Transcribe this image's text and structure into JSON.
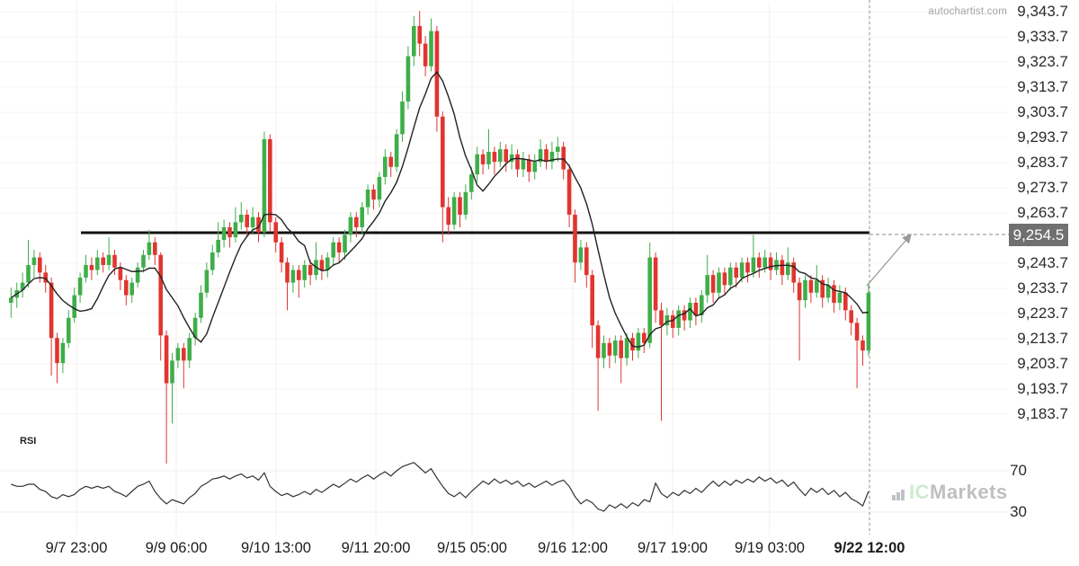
{
  "branding": {
    "watermark_top": "autochartist.com",
    "logo_icon": "bar-chart-icon",
    "logo_ic": "IC",
    "logo_markets": "Markets"
  },
  "price_axis": {
    "labels": [
      "9,343.7",
      "9,333.7",
      "9,323.7",
      "9,313.7",
      "9,303.7",
      "9,293.7",
      "9,283.7",
      "9,273.7",
      "9,263.7",
      "9,243.7",
      "9,233.7",
      "9,223.7",
      "9,213.7",
      "9,203.7",
      "9,193.7",
      "9,183.7"
    ],
    "level_badge": "9,254.5"
  },
  "time_axis": {
    "labels": [
      "9/7 23:00",
      "9/9 06:00",
      "9/10 13:00",
      "9/11 20:00",
      "9/15 05:00",
      "9/16 12:00",
      "9/17 19:00",
      "9/19 03:00",
      "9/22 12:00"
    ]
  },
  "rsi_panel": {
    "title": "RSI",
    "levels": [
      "70",
      "30"
    ]
  },
  "colors": {
    "up": "#3fae4a",
    "down": "#e03530",
    "ma_line": "#222222",
    "level_line": "#111111",
    "annotation": "#999999",
    "grid": "#f4eded",
    "badge_bg": "#707070",
    "badge_text": "#ffffff",
    "rsi_line": "#333333"
  },
  "chart_data": {
    "type": "candlestick",
    "title": "",
    "xlabel": "",
    "ylabel": "",
    "x_tick_labels": [
      "9/7 23:00",
      "9/9 06:00",
      "9/10 13:00",
      "9/11 20:00",
      "9/15 05:00",
      "9/16 12:00",
      "9/17 19:00",
      "9/19 03:00",
      "9/22 12:00"
    ],
    "y_tick_values": [
      9343.7,
      9333.7,
      9323.7,
      9313.7,
      9303.7,
      9293.7,
      9283.7,
      9273.7,
      9263.7,
      9243.7,
      9233.7,
      9223.7,
      9213.7,
      9203.7,
      9193.7,
      9183.7
    ],
    "y_range": [
      9160,
      9350
    ],
    "annotation_level": 9254.5,
    "overlays": [
      {
        "name": "moving-average",
        "derive": "sma",
        "window": 8
      }
    ],
    "candles_ohlc": [
      [
        9228,
        9234,
        9222,
        9230
      ],
      [
        9230,
        9236,
        9226,
        9233
      ],
      [
        9233,
        9240,
        9230,
        9236
      ],
      [
        9236,
        9253,
        9234,
        9243
      ],
      [
        9243,
        9249,
        9238,
        9246
      ],
      [
        9246,
        9248,
        9236,
        9240
      ],
      [
        9240,
        9243,
        9232,
        9236
      ],
      [
        9236,
        9238,
        9199,
        9214
      ],
      [
        9214,
        9216,
        9196,
        9204
      ],
      [
        9204,
        9214,
        9200,
        9212
      ],
      [
        9212,
        9225,
        9210,
        9222
      ],
      [
        9222,
        9234,
        9220,
        9231
      ],
      [
        9231,
        9240,
        9228,
        9238
      ],
      [
        9238,
        9247,
        9236,
        9243
      ],
      [
        9243,
        9246,
        9237,
        9241
      ],
      [
        9241,
        9249,
        9239,
        9246
      ],
      [
        9246,
        9248,
        9240,
        9243
      ],
      [
        9243,
        9254,
        9241,
        9247
      ],
      [
        9247,
        9249,
        9239,
        9242
      ],
      [
        9242,
        9244,
        9233,
        9237
      ],
      [
        9237,
        9239,
        9227,
        9231
      ],
      [
        9231,
        9238,
        9228,
        9236
      ],
      [
        9236,
        9244,
        9234,
        9242
      ],
      [
        9242,
        9249,
        9240,
        9247
      ],
      [
        9247,
        9257,
        9245,
        9252
      ],
      [
        9252,
        9254,
        9243,
        9247
      ],
      [
        9247,
        9248,
        9205,
        9215
      ],
      [
        9215,
        9217,
        9164,
        9196
      ],
      [
        9196,
        9208,
        9180,
        9205
      ],
      [
        9205,
        9212,
        9202,
        9210
      ],
      [
        9210,
        9212,
        9194,
        9205
      ],
      [
        9205,
        9216,
        9202,
        9214
      ],
      [
        9214,
        9224,
        9211,
        9222
      ],
      [
        9222,
        9235,
        9220,
        9232
      ],
      [
        9232,
        9244,
        9230,
        9241
      ],
      [
        9241,
        9251,
        9239,
        9248
      ],
      [
        9248,
        9260,
        9246,
        9253
      ],
      [
        9253,
        9261,
        9250,
        9258
      ],
      [
        9258,
        9260,
        9250,
        9254
      ],
      [
        9254,
        9266,
        9252,
        9260
      ],
      [
        9260,
        9268,
        9257,
        9263
      ],
      [
        9263,
        9265,
        9254,
        9258
      ],
      [
        9258,
        9266,
        9255,
        9262
      ],
      [
        9262,
        9264,
        9252,
        9256
      ],
      [
        9256,
        9296,
        9254,
        9293
      ],
      [
        9293,
        9295,
        9256,
        9260
      ],
      [
        9260,
        9262,
        9248,
        9252
      ],
      [
        9252,
        9254,
        9240,
        9244
      ],
      [
        9244,
        9246,
        9225,
        9236
      ],
      [
        9236,
        9243,
        9232,
        9241
      ],
      [
        9241,
        9243,
        9230,
        9237
      ],
      [
        9237,
        9245,
        9234,
        9243
      ],
      [
        9243,
        9245,
        9235,
        9239
      ],
      [
        9239,
        9252,
        9237,
        9245
      ],
      [
        9245,
        9247,
        9237,
        9241
      ],
      [
        9241,
        9248,
        9238,
        9246
      ],
      [
        9246,
        9254,
        9243,
        9252
      ],
      [
        9252,
        9254,
        9244,
        9248
      ],
      [
        9248,
        9257,
        9245,
        9255
      ],
      [
        9255,
        9264,
        9252,
        9262
      ],
      [
        9262,
        9264,
        9254,
        9258
      ],
      [
        9258,
        9268,
        9255,
        9266
      ],
      [
        9266,
        9275,
        9263,
        9273
      ],
      [
        9273,
        9275,
        9265,
        9269
      ],
      [
        9269,
        9280,
        9266,
        9278
      ],
      [
        9278,
        9289,
        9275,
        9286
      ],
      [
        9286,
        9288,
        9278,
        9282
      ],
      [
        9282,
        9297,
        9280,
        9295
      ],
      [
        9295,
        9312,
        9292,
        9308
      ],
      [
        9308,
        9330,
        9305,
        9326
      ],
      [
        9326,
        9342,
        9322,
        9338
      ],
      [
        9338,
        9344,
        9326,
        9331
      ],
      [
        9331,
        9334,
        9318,
        9322
      ],
      [
        9322,
        9341,
        9320,
        9336
      ],
      [
        9336,
        9338,
        9296,
        9302
      ],
      [
        9302,
        9304,
        9252,
        9266
      ],
      [
        9266,
        9270,
        9255,
        9259
      ],
      [
        9259,
        9272,
        9257,
        9270
      ],
      [
        9270,
        9272,
        9258,
        9263
      ],
      [
        9263,
        9275,
        9261,
        9272
      ],
      [
        9272,
        9282,
        9269,
        9279
      ],
      [
        9279,
        9290,
        9276,
        9287
      ],
      [
        9287,
        9289,
        9279,
        9283
      ],
      [
        9283,
        9297,
        9281,
        9288
      ],
      [
        9288,
        9290,
        9279,
        9284
      ],
      [
        9284,
        9292,
        9282,
        9289
      ],
      [
        9289,
        9291,
        9280,
        9284
      ],
      [
        9284,
        9291,
        9281,
        9287
      ],
      [
        9287,
        9289,
        9278,
        9281
      ],
      [
        9281,
        9288,
        9278,
        9285
      ],
      [
        9285,
        9287,
        9276,
        9280
      ],
      [
        9280,
        9287,
        9277,
        9284
      ],
      [
        9284,
        9293,
        9282,
        9289
      ],
      [
        9289,
        9291,
        9281,
        9284
      ],
      [
        9284,
        9292,
        9281,
        9288
      ],
      [
        9288,
        9294,
        9284,
        9290
      ],
      [
        9290,
        9292,
        9277,
        9281
      ],
      [
        9281,
        9283,
        9258,
        9263
      ],
      [
        9263,
        9265,
        9236,
        9244
      ],
      [
        9244,
        9253,
        9241,
        9250
      ],
      [
        9250,
        9252,
        9234,
        9239
      ],
      [
        9239,
        9241,
        9210,
        9219
      ],
      [
        9219,
        9221,
        9185,
        9206
      ],
      [
        9206,
        9215,
        9202,
        9212
      ],
      [
        9212,
        9214,
        9202,
        9207
      ],
      [
        9207,
        9215,
        9204,
        9213
      ],
      [
        9213,
        9215,
        9196,
        9206
      ],
      [
        9206,
        9216,
        9203,
        9214
      ],
      [
        9214,
        9216,
        9205,
        9209
      ],
      [
        9209,
        9218,
        9206,
        9216
      ],
      [
        9216,
        9218,
        9208,
        9212
      ],
      [
        9212,
        9252,
        9210,
        9246
      ],
      [
        9246,
        9248,
        9220,
        9225
      ],
      [
        9225,
        9228,
        9181,
        9219
      ],
      [
        9219,
        9226,
        9215,
        9223
      ],
      [
        9223,
        9225,
        9214,
        9218
      ],
      [
        9218,
        9227,
        9215,
        9225
      ],
      [
        9225,
        9227,
        9217,
        9221
      ],
      [
        9221,
        9230,
        9218,
        9228
      ],
      [
        9228,
        9230,
        9219,
        9223
      ],
      [
        9223,
        9233,
        9220,
        9231
      ],
      [
        9231,
        9247,
        9228,
        9239
      ],
      [
        9239,
        9241,
        9228,
        9232
      ],
      [
        9232,
        9242,
        9230,
        9240
      ],
      [
        9240,
        9242,
        9231,
        9235
      ],
      [
        9235,
        9244,
        9233,
        9242
      ],
      [
        9242,
        9244,
        9234,
        9238
      ],
      [
        9238,
        9246,
        9236,
        9244
      ],
      [
        9244,
        9246,
        9236,
        9240
      ],
      [
        9240,
        9255,
        9238,
        9246
      ],
      [
        9246,
        9248,
        9238,
        9242
      ],
      [
        9242,
        9249,
        9240,
        9246
      ],
      [
        9246,
        9248,
        9237,
        9241
      ],
      [
        9241,
        9248,
        9239,
        9245
      ],
      [
        9245,
        9247,
        9235,
        9239
      ],
      [
        9239,
        9250,
        9237,
        9244
      ],
      [
        9244,
        9246,
        9232,
        9236
      ],
      [
        9236,
        9238,
        9205,
        9229
      ],
      [
        9229,
        9239,
        9226,
        9237
      ],
      [
        9237,
        9239,
        9228,
        9232
      ],
      [
        9232,
        9243,
        9230,
        9237
      ],
      [
        9237,
        9239,
        9226,
        9230
      ],
      [
        9230,
        9238,
        9228,
        9235
      ],
      [
        9235,
        9237,
        9224,
        9228
      ],
      [
        9228,
        9235,
        9225,
        9232
      ],
      [
        9232,
        9234,
        9221,
        9225
      ],
      [
        9225,
        9227,
        9215,
        9220
      ],
      [
        9220,
        9222,
        9194,
        9213
      ],
      [
        9213,
        9215,
        9203,
        9209
      ],
      [
        9209,
        9236,
        9207,
        9232
      ]
    ],
    "rsi": {
      "levels": [
        70,
        30
      ],
      "values": [
        57,
        55,
        55,
        57,
        57,
        52,
        50,
        45,
        43,
        47,
        45,
        47,
        52,
        55,
        53,
        55,
        53,
        55,
        50,
        48,
        45,
        50,
        55,
        57,
        60,
        50,
        43,
        38,
        42,
        40,
        38,
        44,
        48,
        55,
        58,
        62,
        63,
        65,
        62,
        65,
        67,
        63,
        65,
        61,
        68,
        55,
        50,
        46,
        48,
        45,
        47,
        50,
        47,
        52,
        49,
        53,
        57,
        54,
        58,
        62,
        59,
        63,
        66,
        62,
        66,
        69,
        65,
        70,
        74,
        76,
        78,
        73,
        68,
        72,
        63,
        55,
        48,
        45,
        49,
        44,
        50,
        55,
        60,
        57,
        62,
        58,
        61,
        57,
        60,
        55,
        58,
        54,
        57,
        60,
        56,
        59,
        61,
        55,
        45,
        38,
        42,
        39,
        33,
        31,
        37,
        34,
        38,
        34,
        39,
        36,
        42,
        40,
        58,
        48,
        44,
        49,
        46,
        51,
        48,
        53,
        49,
        55,
        60,
        55,
        60,
        56,
        61,
        58,
        62,
        59,
        64,
        60,
        63,
        58,
        61,
        55,
        59,
        52,
        46,
        53,
        49,
        53,
        47,
        51,
        45,
        49,
        43,
        40,
        36,
        50
      ]
    }
  }
}
